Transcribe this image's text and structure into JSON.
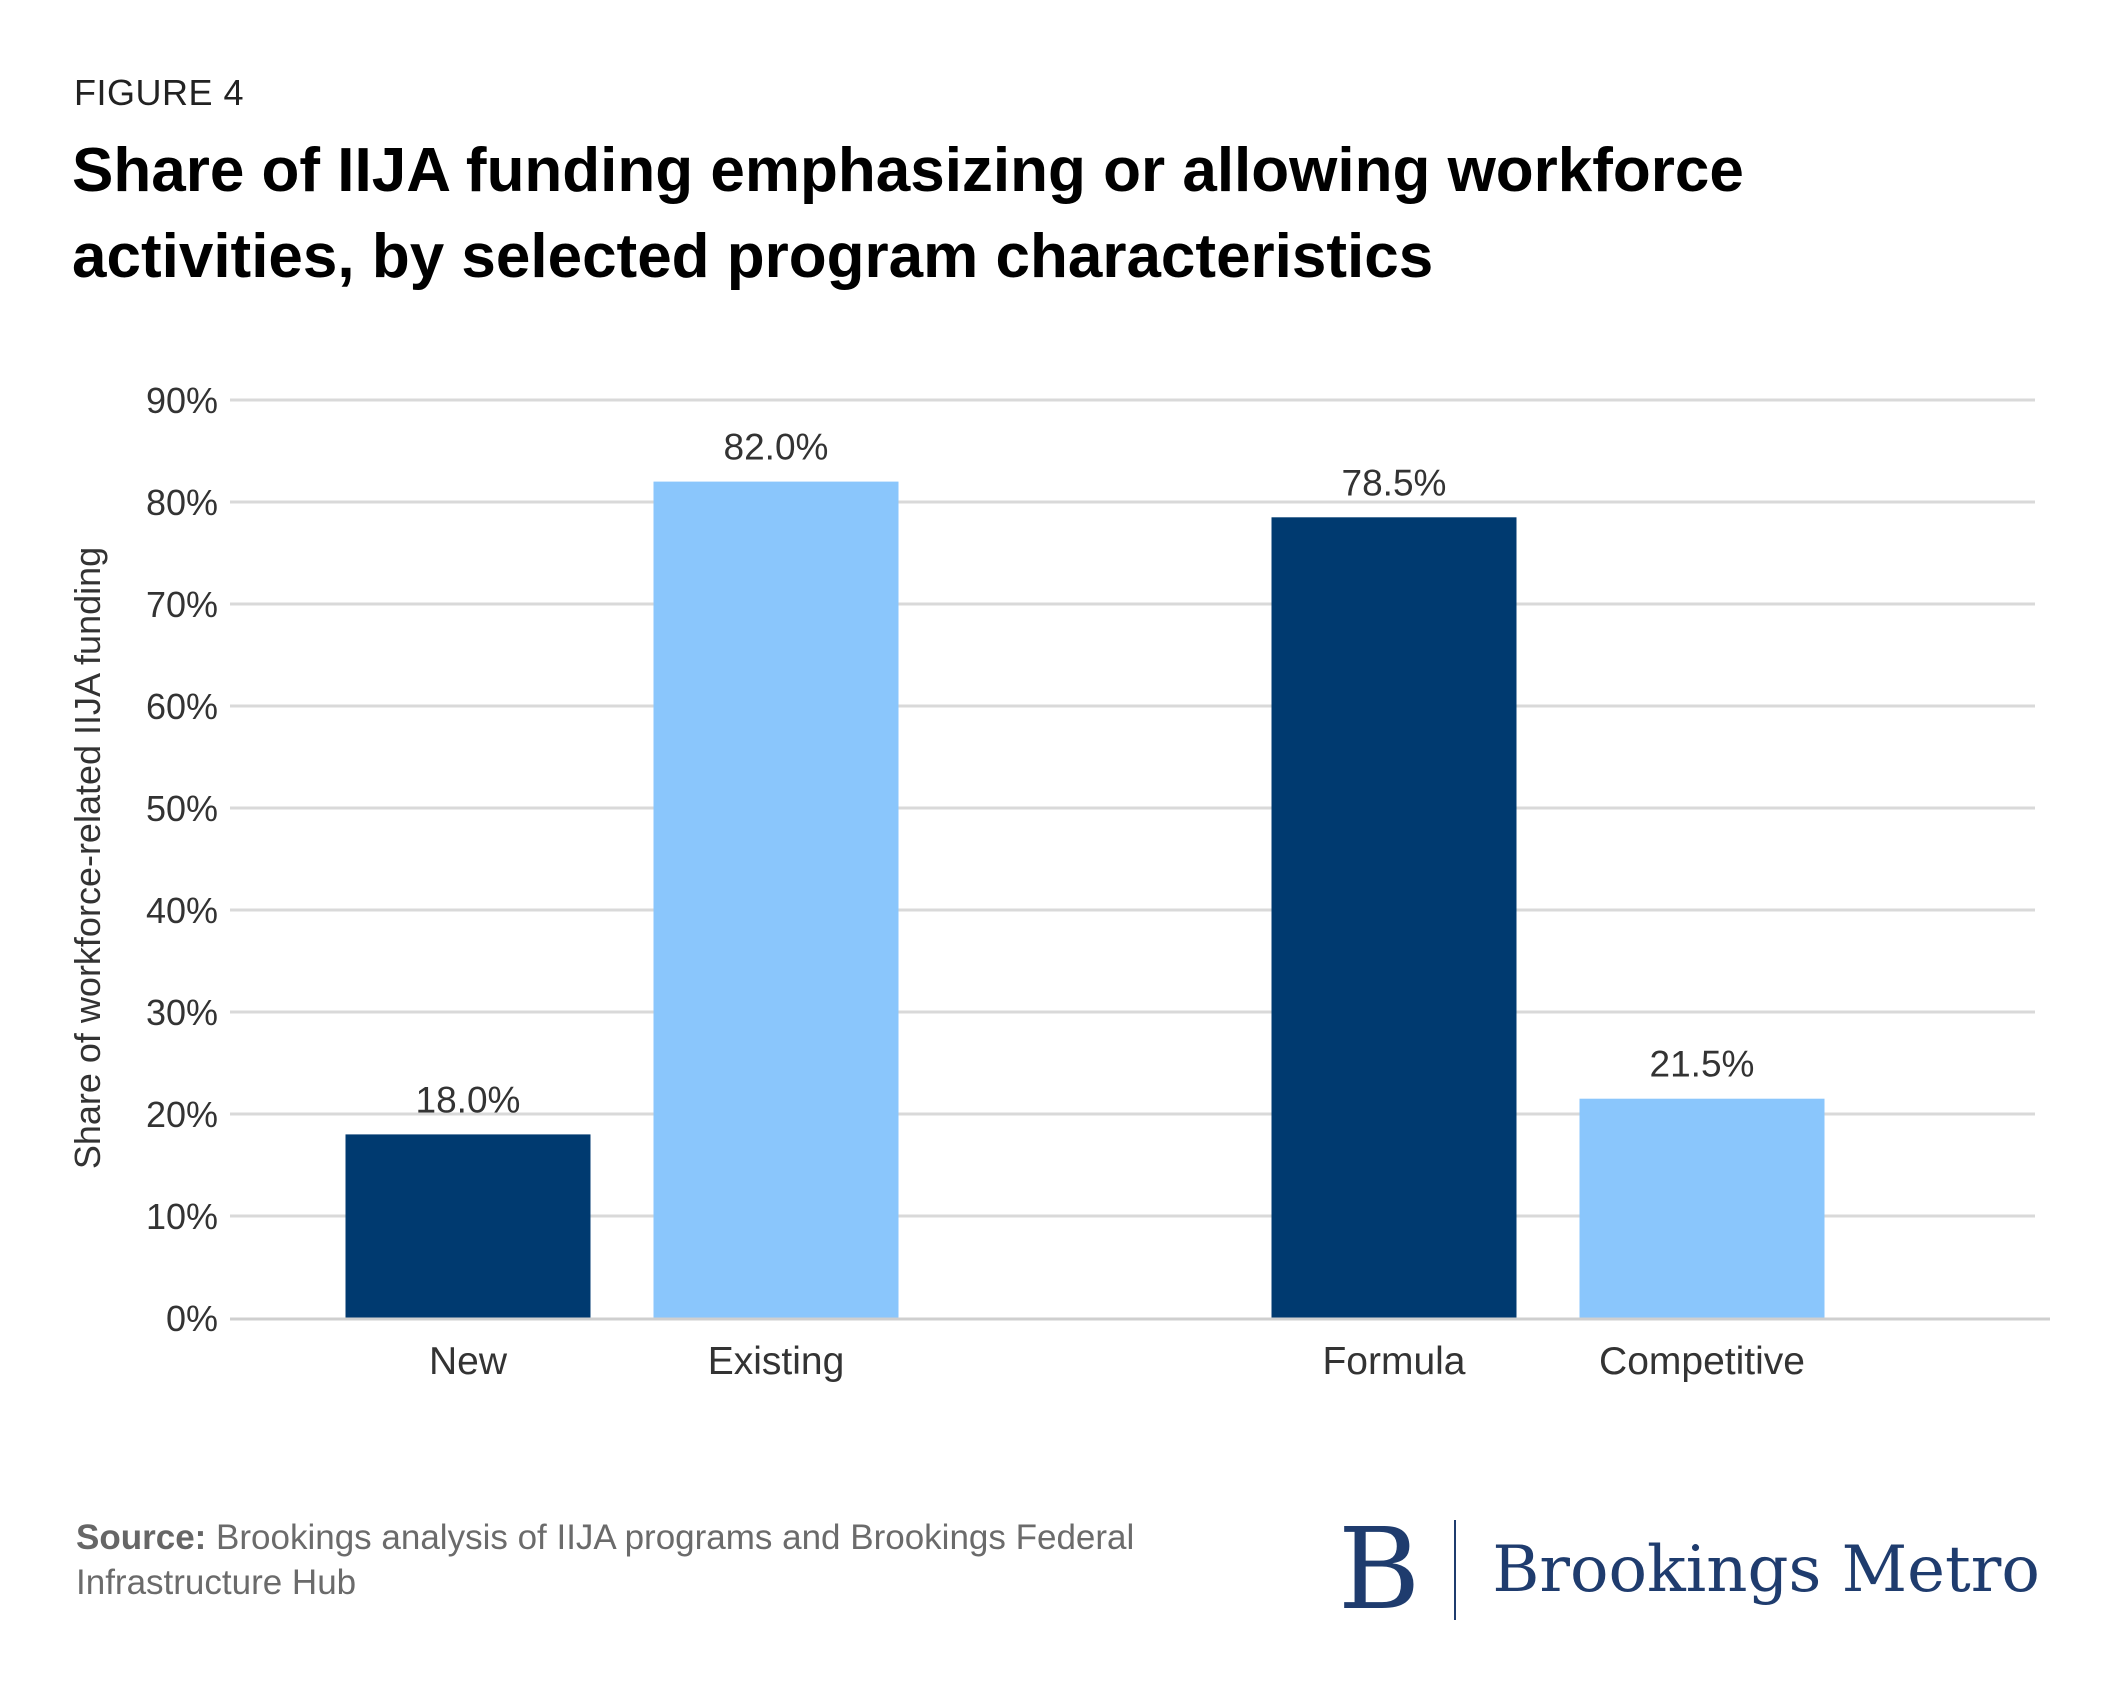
{
  "figure_label": "FIGURE 4",
  "title": "Share of IIJA funding emphasizing or allowing workforce activities, by selected program characteristics",
  "source": {
    "label": "Source:",
    "text": " Brookings analysis of IIJA programs and Brookings Federal Infrastructure Hub"
  },
  "logo": {
    "mark": "B",
    "text": "Brookings Metro"
  },
  "colors": {
    "dark": "#003a70",
    "light": "#8ac6fc",
    "grid": "#d9d9d9",
    "text": "#333333"
  },
  "chart_data": {
    "type": "bar",
    "title": "Share of IIJA funding emphasizing or allowing workforce activities, by selected program characteristics",
    "xlabel": "",
    "ylabel": "Share of workforce-related IIJA funding",
    "ylim": [
      0,
      90
    ],
    "yticks": [
      0,
      10,
      20,
      30,
      40,
      50,
      60,
      70,
      80,
      90
    ],
    "ytick_labels": [
      "0%",
      "10%",
      "20%",
      "30%",
      "40%",
      "50%",
      "60%",
      "70%",
      "80%",
      "90%"
    ],
    "grid": true,
    "legend": "none",
    "groups": [
      {
        "bars": [
          {
            "category": "New",
            "value": 18.0,
            "label": "18.0%",
            "color": "#003a70"
          },
          {
            "category": "Existing",
            "value": 82.0,
            "label": "82.0%",
            "color": "#8ac6fc"
          }
        ]
      },
      {
        "bars": [
          {
            "category": "Formula",
            "value": 78.5,
            "label": "78.5%",
            "color": "#003a70"
          },
          {
            "category": "Competitive",
            "value": 21.5,
            "label": "21.5%",
            "color": "#8ac6fc"
          }
        ]
      }
    ]
  }
}
